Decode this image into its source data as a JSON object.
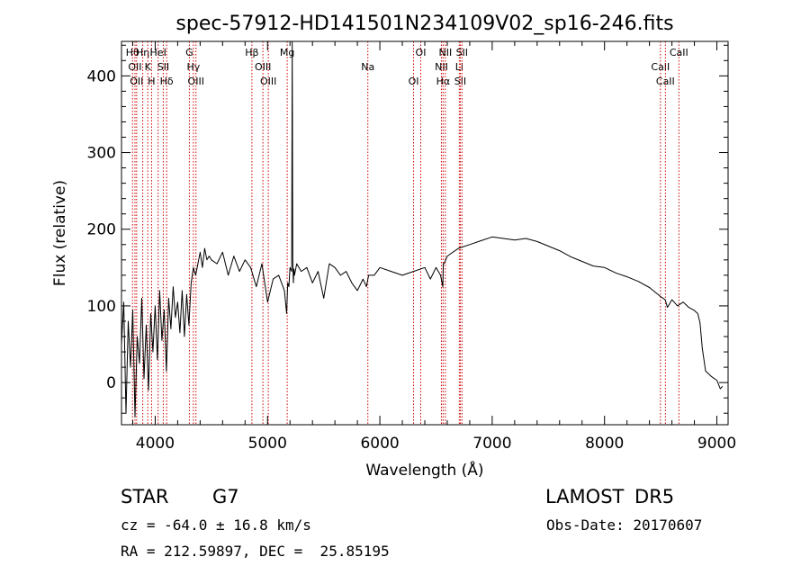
{
  "chart_data": {
    "type": "line",
    "title": "spec-57912-HD141501N234109V02_sp16-246.fits",
    "xlabel": "Wavelength (Å)",
    "ylabel": "Flux (relative)",
    "xlim": [
      3700,
      9100
    ],
    "ylim": [
      -55,
      445
    ],
    "xticks": [
      4000,
      5000,
      6000,
      7000,
      8000,
      9000
    ],
    "yticks": [
      0,
      100,
      200,
      300,
      400
    ],
    "line_color": "#000000",
    "marker_color": "#cc0000",
    "series": [
      {
        "x": [
          3700,
          3720,
          3740,
          3760,
          3780,
          3800,
          3820,
          3840,
          3860,
          3880,
          3900,
          3920,
          3940,
          3960,
          3980,
          4000,
          4020,
          4040,
          4060,
          4080,
          4100,
          4120,
          4140,
          4160,
          4180,
          4200,
          4220,
          4240,
          4260,
          4280,
          4300,
          4320,
          4340,
          4360,
          4380,
          4400,
          4420,
          4440,
          4460,
          4480,
          4500,
          4550,
          4600,
          4650,
          4700,
          4750,
          4800,
          4850,
          4900,
          4950,
          5000,
          5050,
          5100,
          5150,
          5170,
          5180,
          5190,
          5200,
          5215,
          5220,
          5225,
          5230,
          5235,
          5240,
          5260,
          5300,
          5350,
          5400,
          5450,
          5500,
          5550,
          5600,
          5650,
          5700,
          5750,
          5800,
          5850,
          5880,
          5900,
          5950,
          6000,
          6100,
          6200,
          6300,
          6400,
          6450,
          6500,
          6540,
          6560,
          6565,
          6570,
          6580,
          6600,
          6700,
          6800,
          6900,
          7000,
          7100,
          7200,
          7300,
          7400,
          7500,
          7600,
          7700,
          7800,
          7900,
          8000,
          8100,
          8200,
          8300,
          8400,
          8450,
          8500,
          8540,
          8560,
          8600,
          8650,
          8700,
          8750,
          8800,
          8830,
          8850,
          8870,
          8900,
          8950,
          9000,
          9030,
          9050
        ],
        "values": [
          50,
          105,
          -40,
          80,
          20,
          95,
          -45,
          60,
          25,
          110,
          5,
          75,
          -10,
          90,
          40,
          100,
          30,
          120,
          55,
          95,
          15,
          110,
          70,
          125,
          85,
          105,
          65,
          120,
          60,
          115,
          75,
          130,
          150,
          140,
          155,
          170,
          150,
          175,
          160,
          165,
          160,
          155,
          170,
          140,
          165,
          145,
          160,
          150,
          125,
          155,
          105,
          135,
          140,
          120,
          90,
          130,
          125,
          150,
          145,
          450,
          160,
          130,
          148,
          140,
          155,
          145,
          150,
          130,
          145,
          110,
          155,
          150,
          140,
          145,
          130,
          120,
          135,
          125,
          140,
          140,
          150,
          145,
          140,
          145,
          150,
          135,
          150,
          140,
          125,
          155,
          155,
          158,
          165,
          175,
          180,
          185,
          190,
          188,
          186,
          188,
          184,
          178,
          172,
          164,
          158,
          152,
          150,
          143,
          138,
          132,
          124,
          118,
          112,
          108,
          98,
          108,
          100,
          105,
          98,
          94,
          90,
          78,
          45,
          15,
          8,
          3,
          -8,
          -5
        ]
      }
    ],
    "lines": [
      {
        "wl": 3798,
        "labels": [
          "Hθ"
        ]
      },
      {
        "wl": 3820,
        "labels": [
          "OII"
        ]
      },
      {
        "wl": 3835,
        "labels": [
          "OII"
        ]
      },
      {
        "wl": 3889,
        "labels": [
          "Hη"
        ]
      },
      {
        "wl": 3934,
        "labels": [
          "K"
        ]
      },
      {
        "wl": 3968,
        "labels": [
          "H"
        ]
      },
      {
        "wl": 4026,
        "labels": [
          "HeI"
        ]
      },
      {
        "wl": 4072,
        "labels": [
          "SII"
        ]
      },
      {
        "wl": 4102,
        "labels": [
          "Hδ"
        ]
      },
      {
        "wl": 4304,
        "labels": [
          "G"
        ]
      },
      {
        "wl": 4340,
        "labels": [
          "Hγ"
        ]
      },
      {
        "wl": 4363,
        "labels": [
          "OIII"
        ]
      },
      {
        "wl": 4861,
        "labels": [
          "Hβ"
        ]
      },
      {
        "wl": 4959,
        "labels": [
          "OIII"
        ]
      },
      {
        "wl": 5007,
        "labels": [
          "OIII"
        ]
      },
      {
        "wl": 5175,
        "labels": [
          "Mg"
        ]
      },
      {
        "wl": 5893,
        "labels": [
          "Na"
        ]
      },
      {
        "wl": 6300,
        "labels": [
          "OI"
        ]
      },
      {
        "wl": 6364,
        "labels": [
          "OI"
        ]
      },
      {
        "wl": 6548,
        "labels": [
          "NII"
        ]
      },
      {
        "wl": 6563,
        "labels": [
          "Hα"
        ]
      },
      {
        "wl": 6583,
        "labels": [
          "NII"
        ]
      },
      {
        "wl": 6707,
        "labels": [
          "Li"
        ]
      },
      {
        "wl": 6716,
        "labels": [
          "SII"
        ]
      },
      {
        "wl": 6731,
        "labels": [
          "SII"
        ]
      },
      {
        "wl": 8498,
        "labels": [
          "CaII"
        ]
      },
      {
        "wl": 8542,
        "labels": [
          "CaII"
        ]
      },
      {
        "wl": 8662,
        "labels": [
          "CaII"
        ]
      }
    ]
  },
  "info": {
    "object_class": "STAR",
    "subclass": "G7",
    "survey": "LAMOST DR5",
    "cz": "cz = -64.0 ± 16.8 km/s",
    "obs_date": "Obs-Date: 20170607",
    "coords": "RA = 212.59897, DEC =  25.85195"
  }
}
